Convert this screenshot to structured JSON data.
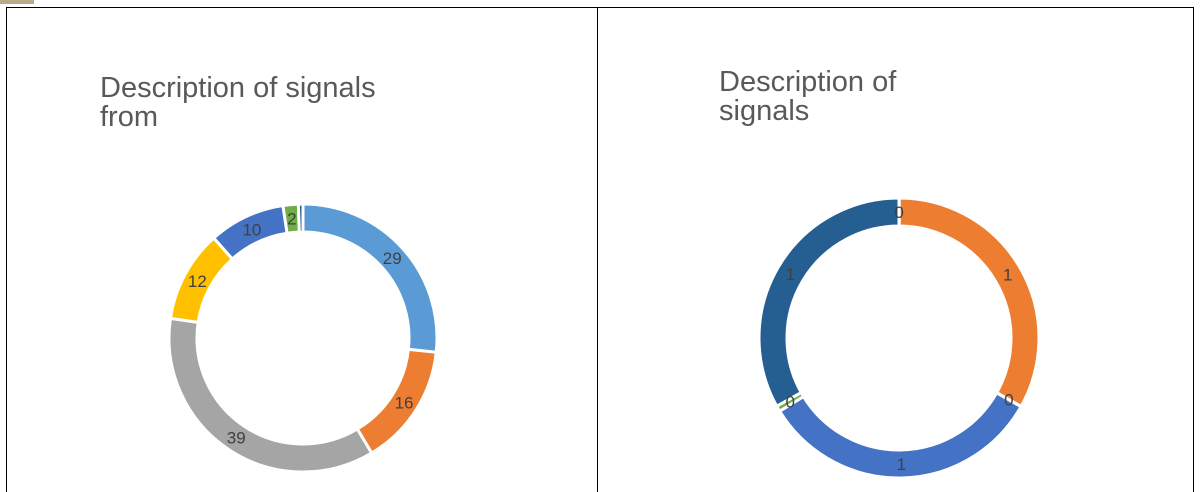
{
  "chart_data": [
    {
      "type": "pie",
      "style": "donut",
      "title": "Description of signals\nfrom",
      "slices": [
        {
          "label": "29",
          "value": 29,
          "color": "#5b9bd5"
        },
        {
          "label": "16",
          "value": 16,
          "color": "#ed7d31"
        },
        {
          "label": "39",
          "value": 39,
          "color": "#a5a5a5"
        },
        {
          "label": "12",
          "value": 12,
          "color": "#ffc000"
        },
        {
          "label": "10",
          "value": 10,
          "color": "#4472c4"
        },
        {
          "label": "2",
          "value": 2,
          "color": "#70ad47"
        },
        {
          "label": "",
          "value": 0.6,
          "color": "#255e91"
        }
      ]
    },
    {
      "type": "pie",
      "style": "donut",
      "title": "Description of\nsignals",
      "slices": [
        {
          "label": "0",
          "value": 0.001,
          "color": "#5b9bd5"
        },
        {
          "label": "1",
          "value": 1,
          "color": "#ed7d31"
        },
        {
          "label": "0",
          "value": 0.001,
          "color": "#a5a5a5"
        },
        {
          "label": "1",
          "value": 1,
          "color": "#4472c4"
        },
        {
          "label": "0",
          "value": 0.02,
          "color": "#70ad47"
        },
        {
          "label": "1",
          "value": 1,
          "color": "#255e91"
        }
      ]
    }
  ],
  "colors": {
    "frame": "#000000",
    "title": "#595959",
    "label": "#404040",
    "corner_mark": "#b8aa8a"
  }
}
